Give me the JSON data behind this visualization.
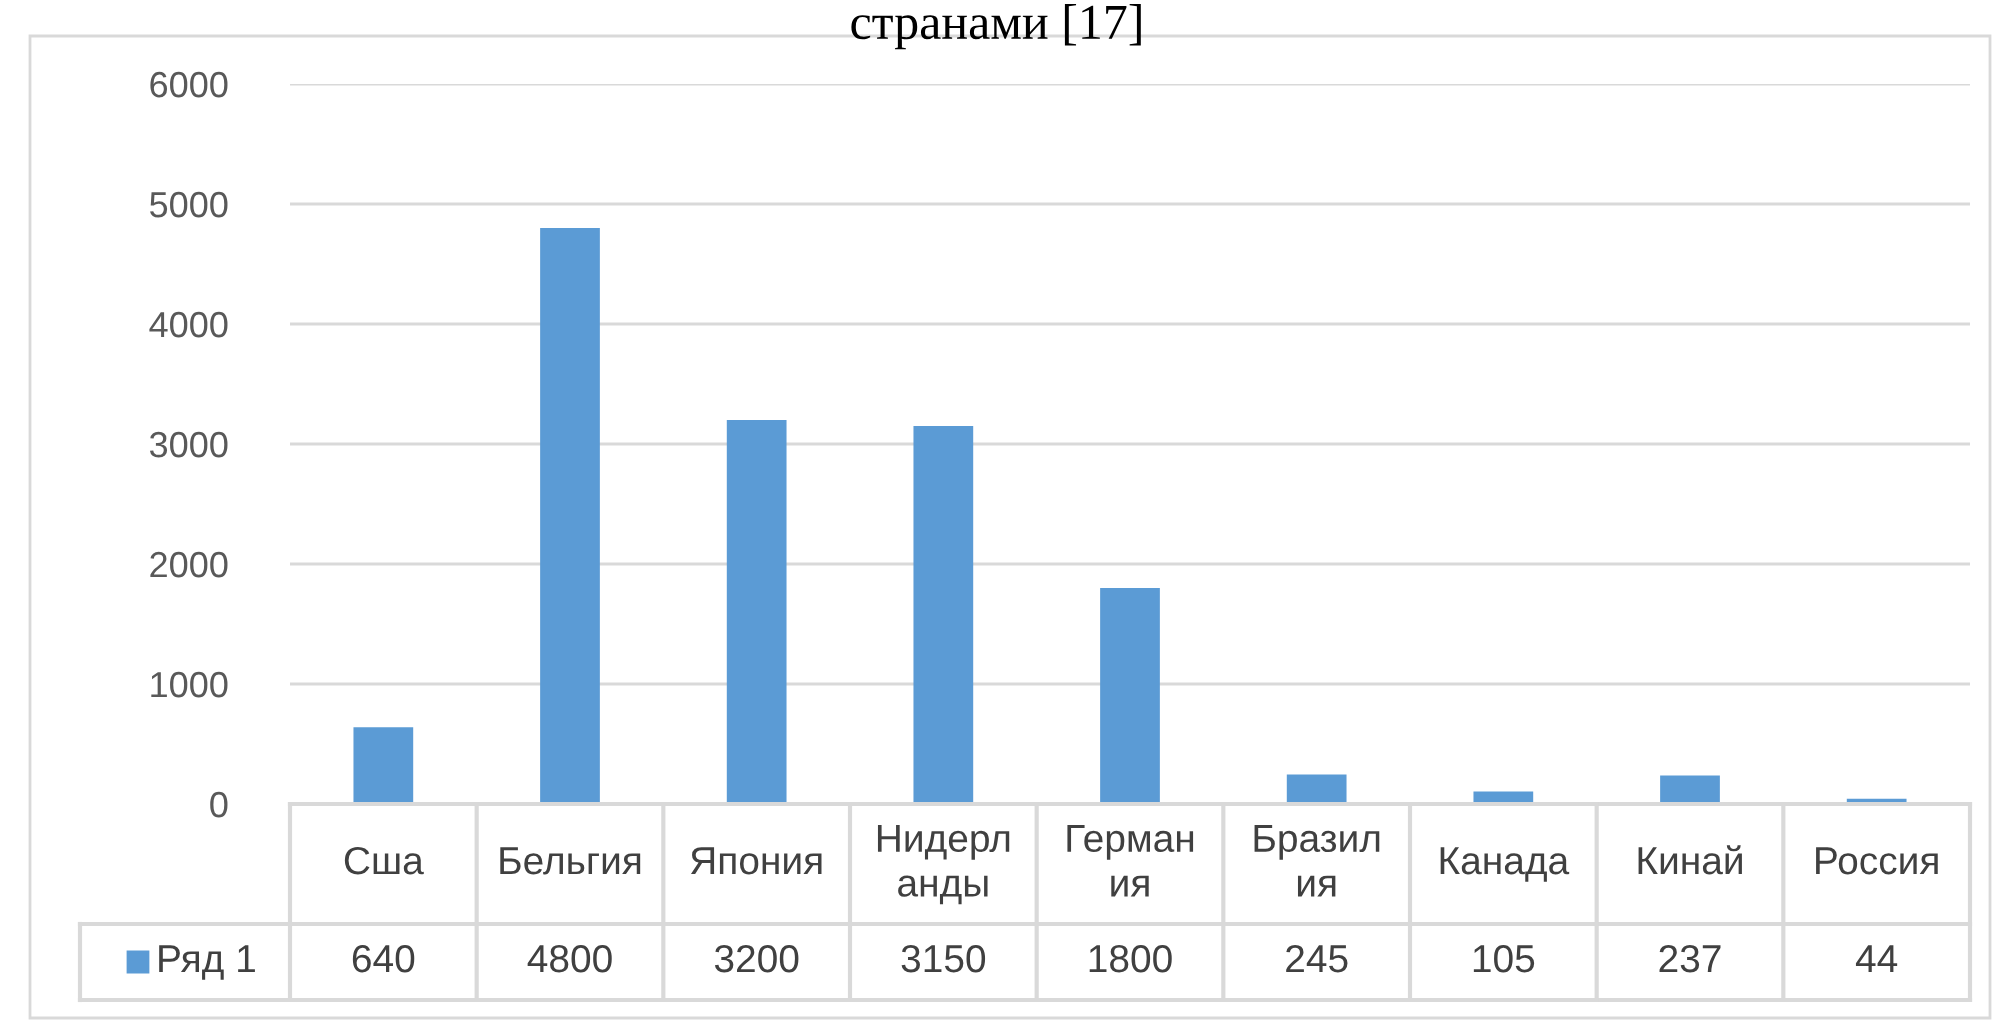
{
  "chart_data": {
    "type": "bar",
    "title": "странами [17]",
    "categories": [
      "Сша",
      "Бельгия",
      "Япония",
      "Нидерланды",
      "Германия",
      "Бразилия",
      "Канада",
      "Кинай",
      "Россия"
    ],
    "series": [
      {
        "name": "Ряд 1",
        "color": "#5b9bd5",
        "values": [
          640,
          4800,
          3200,
          3150,
          1800,
          245,
          105,
          237,
          44
        ]
      }
    ],
    "ylim": [
      0,
      6000
    ],
    "yticks": [
      0,
      1000,
      2000,
      3000,
      4000,
      5000,
      6000
    ],
    "grid": "y",
    "legend": "bottom",
    "data_labels": true
  }
}
